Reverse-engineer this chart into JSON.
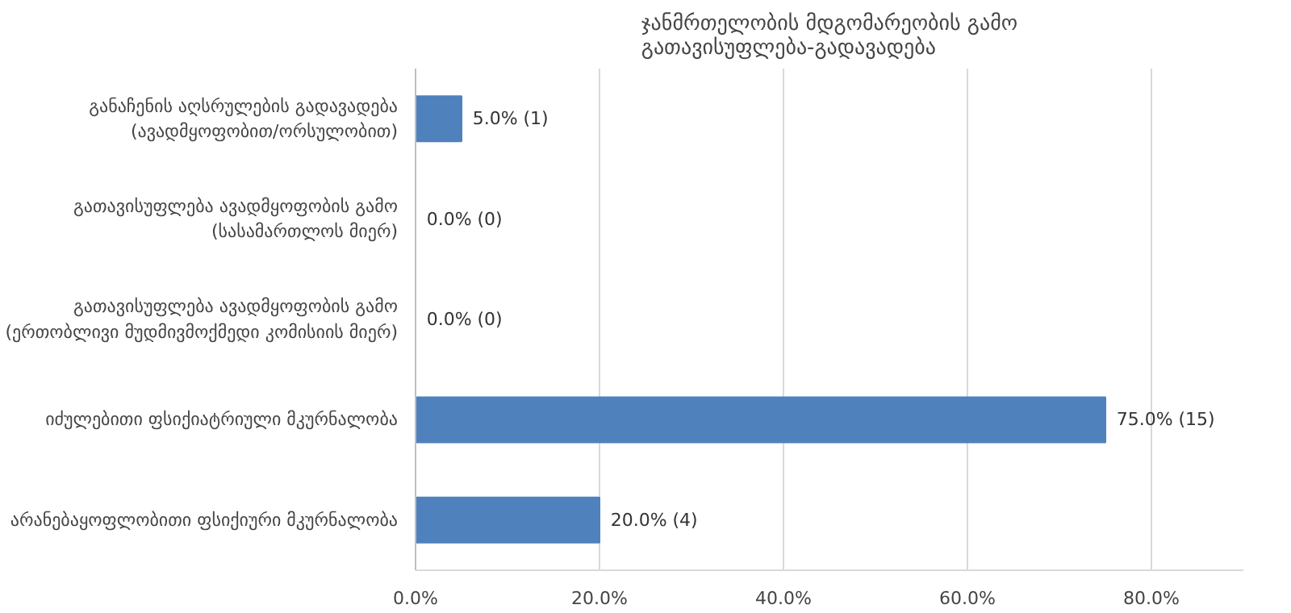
{
  "chart_data": {
    "type": "bar",
    "orientation": "horizontal",
    "title": "ჯანმრთელობის მდგომარეობის გამო\nგათავისუფლება-გადავადება",
    "categories": [
      "განაჩენის აღსრულების გადავადება\n(ავადმყოფობით/ორსულობით)",
      "გათავისუფლება ავადმყოფობის გამო\n(სასამართლოს მიერ)",
      "გათავისუფლება ავადმყოფობის გამო\n(ერთობლივი მუდმივმოქმედი კომისიის მიერ)",
      "იძულებითი ფსიქიატრიული მკურნალობა",
      "არანებაყოფლობითი ფსიქიური მკურნალობა"
    ],
    "values": [
      5.0,
      0.0,
      0.0,
      75.0,
      20.0
    ],
    "value_labels": [
      "5.0% (1)",
      "0.0% (0)",
      "0.0% (0)",
      "75.0% (15)",
      "20.0% (4)"
    ],
    "color": "#4f81bd",
    "xlim": [
      0,
      90
    ],
    "xticks": [
      {
        "value": 0,
        "label": "0.0%"
      },
      {
        "value": 20,
        "label": "20.0%"
      },
      {
        "value": 40,
        "label": "40.0%"
      },
      {
        "value": 60,
        "label": "60.0%"
      },
      {
        "value": 80,
        "label": "80.0%"
      }
    ],
    "grid": "x"
  }
}
